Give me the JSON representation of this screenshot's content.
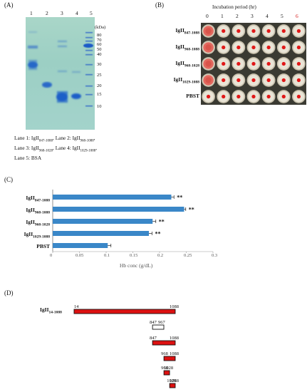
{
  "panels": {
    "a": "(A)",
    "b": "(B)",
    "c": "(C)",
    "d": "(D)"
  },
  "gel": {
    "lanes": [
      "1",
      "2",
      "3",
      "4",
      "5"
    ],
    "kda_label": "(kDa)",
    "markers": [
      "80",
      "70",
      "60",
      "50",
      "40",
      "30",
      "25",
      "20",
      "15",
      "10"
    ],
    "legend": [
      {
        "lane": "Lane 1: IgII",
        "sub": "847-1088",
        "sep": ", ",
        "lane2": "Lane 2: IgII",
        "sub2": "968-1088",
        "end": ","
      },
      {
        "lane": "Lane 3: IgII",
        "sub": "968-1028",
        "sep": ", ",
        "lane2": "Lane 4: IgII",
        "sub2": "1029-1088",
        "end": ","
      },
      {
        "lane": "Lane 5: BSA",
        "sub": "",
        "sep": "",
        "lane2": "",
        "sub2": "",
        "end": ""
      }
    ]
  },
  "incubation": {
    "title": "Incubation period (hr)",
    "columns": [
      "0",
      "1",
      "2",
      "3",
      "4",
      "5",
      "6"
    ],
    "highlight_column_color": "#d62020",
    "rows": [
      {
        "name": "IgII",
        "sub": "847-1088"
      },
      {
        "name": "IgII",
        "sub": "968-1088"
      },
      {
        "name": "IgII",
        "sub": "968-1028"
      },
      {
        "name": "IgII",
        "sub": "1029-1088"
      },
      {
        "name": "PBST",
        "sub": ""
      }
    ]
  },
  "chart_data": {
    "type": "bar",
    "orientation": "horizontal",
    "categories": [
      {
        "name": "IgII",
        "sub": "847-1088"
      },
      {
        "name": "IgII",
        "sub": "968-1088"
      },
      {
        "name": "IgII",
        "sub": "968-1028"
      },
      {
        "name": "IgII",
        "sub": "1029-1088"
      },
      {
        "name": "PBST",
        "sub": ""
      }
    ],
    "values": [
      0.222,
      0.246,
      0.187,
      0.18,
      0.103
    ],
    "errors": [
      0.005,
      0.003,
      0.006,
      0.006,
      0.006
    ],
    "significance": [
      "**",
      "**",
      "**",
      "**",
      ""
    ],
    "xlabel": "Hb conc (g/dL)",
    "xlim": [
      0,
      0.3
    ],
    "xticks": [
      "0",
      "0.05",
      "0.1",
      "0.15",
      "0.2",
      "0.25",
      "0.3"
    ],
    "bar_color": "#3a87c8"
  },
  "fragments": {
    "full_label": "IgII",
    "full_sub": "14-1088",
    "items": [
      {
        "start": 14,
        "end": 1088,
        "start_label": "14",
        "end_label": "1088",
        "filled": true
      },
      {
        "start": 847,
        "end": 967,
        "start_label": "847",
        "end_label": "967",
        "filled": false
      },
      {
        "start": 847,
        "end": 1088,
        "start_label": "847",
        "end_label": "1088",
        "filled": true
      },
      {
        "start": 968,
        "end": 1088,
        "start_label": "968",
        "end_label": "1088",
        "filled": true
      },
      {
        "start": 968,
        "end": 1028,
        "start_label": "968",
        "end_label": "1028",
        "filled": true
      },
      {
        "start": 1029,
        "end": 1088,
        "start_label": "1029",
        "end_label": "1088",
        "filled": true
      }
    ],
    "fill_color": "#dd1111"
  }
}
